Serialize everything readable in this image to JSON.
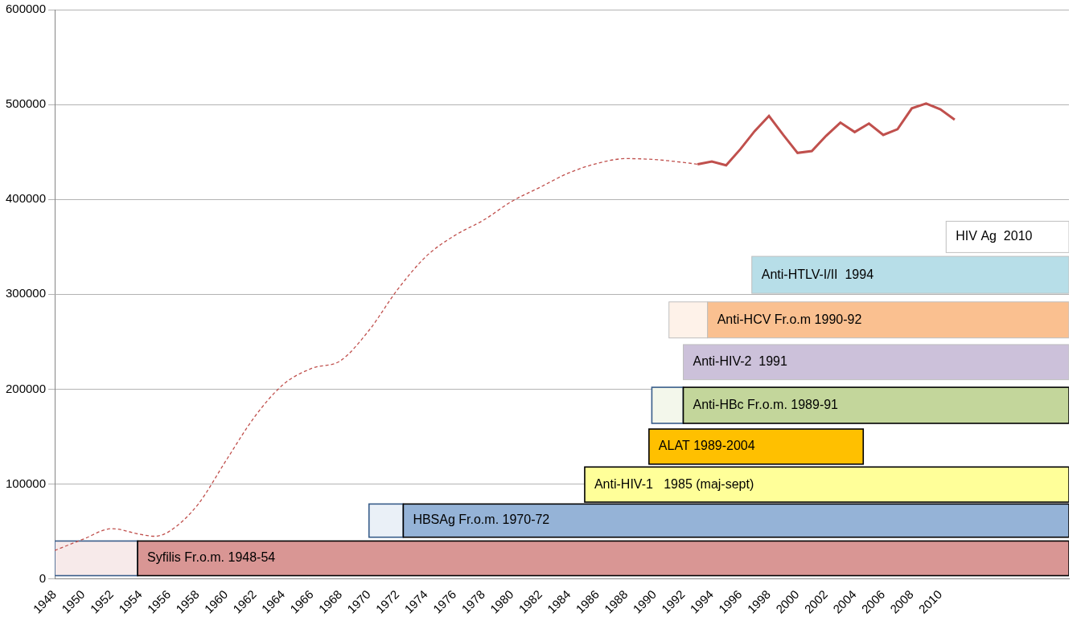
{
  "chart_data": {
    "type": "line",
    "xlim": [
      1948,
      2019
    ],
    "xticks": [
      1948,
      1950,
      1952,
      1954,
      1956,
      1958,
      1960,
      1962,
      1964,
      1966,
      1968,
      1970,
      1972,
      1974,
      1976,
      1978,
      1980,
      1982,
      1984,
      1986,
      1988,
      1990,
      1992,
      1994,
      1996,
      1998,
      2000,
      2002,
      2004,
      2006,
      2008,
      2010
    ],
    "ylim": [
      0,
      600000
    ],
    "yticks": [
      0,
      100000,
      200000,
      300000,
      400000,
      500000,
      600000
    ],
    "grid": true,
    "series": [
      {
        "color": "#c0504d",
        "line_style": "dashed",
        "marker": "none",
        "x": [
          1948,
          1950,
          1952,
          1954,
          1955,
          1956,
          1958,
          1960,
          1962,
          1964,
          1966,
          1968,
          1970,
          1972,
          1974,
          1976,
          1978,
          1980,
          1982,
          1984,
          1986,
          1988,
          1990,
          1992,
          1993
        ],
        "values": [
          30000,
          42000,
          53000,
          47000,
          45000,
          50000,
          78000,
          125000,
          171000,
          205000,
          222000,
          230000,
          262000,
          305000,
          340000,
          362000,
          378000,
          398000,
          413000,
          428000,
          438000,
          443000,
          442000,
          439000,
          437000
        ]
      },
      {
        "color": "#c0504d",
        "line_style": "solid",
        "marker": "none",
        "x": [
          1993,
          1994,
          1995,
          1996,
          1997,
          1998,
          1999,
          2000,
          2001,
          2002,
          2003,
          2004,
          2005,
          2006,
          2007,
          2008,
          2009,
          2010,
          2011
        ],
        "values": [
          437000,
          440000,
          436000,
          453000,
          472000,
          488000,
          468000,
          449000,
          451000,
          467000,
          481000,
          471000,
          480000,
          468000,
          474000,
          496000,
          501000,
          495000,
          484000
        ]
      }
    ],
    "annotations": [
      {
        "text": "Syfilis Fr.o.m. 1948-54",
        "x_start": 1948,
        "x_full": 1953.8,
        "x_end": 2019,
        "y_low": 3500,
        "y_high": 40000,
        "color": "#d99694"
      },
      {
        "text": "HBSAg Fr.o.m. 1970-72",
        "x_start": 1970,
        "x_full": 1972.4,
        "x_end": 2019,
        "y_low": 44000,
        "y_high": 79000,
        "color": "#95b3d7"
      },
      {
        "text": "Anti-HIV-1   1985 (maj-sept)",
        "x_start": 1985.1,
        "x_full": 1985.1,
        "x_end": 2019,
        "y_low": 81000,
        "y_high": 118000,
        "color": "#ffff99"
      },
      {
        "text": "ALAT 1989-2004",
        "x_start": 1989.6,
        "x_full": 1989.6,
        "x_end": 2004.6,
        "y_low": 121000,
        "y_high": 158000,
        "color": "#ffc000"
      },
      {
        "text": "Anti-HBc Fr.o.m. 1989-91",
        "x_start": 1989.8,
        "x_full": 1992,
        "x_end": 2019,
        "y_low": 164000,
        "y_high": 202000,
        "color": "#c3d69b"
      },
      {
        "text": "Anti-HIV-2  1991",
        "x_start": 1992,
        "x_full": 1992,
        "x_end": 2019,
        "y_low": 210000,
        "y_high": 247000,
        "color": "#ccc1da"
      },
      {
        "text": "Anti-HCV Fr.o.m 1990-92",
        "x_start": 1991,
        "x_full": 1993.7,
        "x_end": 2019,
        "y_low": 254000,
        "y_high": 292000,
        "color": "#fac090"
      },
      {
        "text": "Anti-HTLV-I/II  1994",
        "x_start": 1996.8,
        "x_full": 1996.8,
        "x_end": 2019,
        "y_low": 301000,
        "y_high": 340000,
        "color": "#b7dee8"
      },
      {
        "text": "HIV Ag  2010",
        "x_start": 2010.4,
        "x_full": 2010.4,
        "x_end": 2019,
        "y_low": 344000,
        "y_high": 377000,
        "color": "#ffffff"
      }
    ]
  }
}
